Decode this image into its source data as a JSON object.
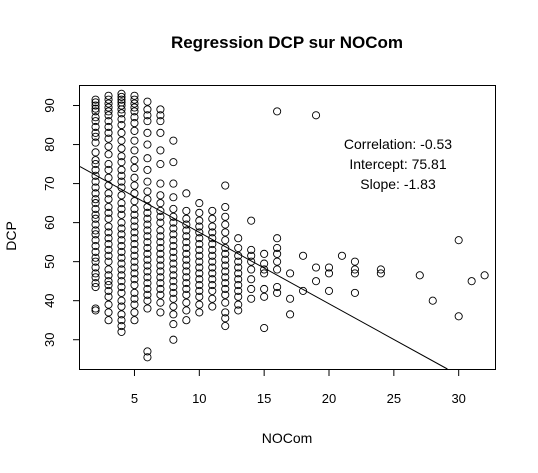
{
  "chart_data": {
    "type": "scatter",
    "title": "Regression DCP sur NOCom",
    "xlabel": "NOCom",
    "ylabel": "DCP",
    "xlim": [
      0.8,
      32.8
    ],
    "ylim": [
      22.5,
      95.0
    ],
    "xticks": [
      5,
      10,
      15,
      20,
      25,
      30
    ],
    "yticks": [
      30,
      40,
      50,
      60,
      70,
      80,
      90
    ],
    "grid": false,
    "annotations": [
      "Correlation: -0.53",
      "Intercept: 75.81",
      "Slope: -1.83"
    ],
    "regression": {
      "intercept": 75.81,
      "slope": -1.83
    },
    "columns": [
      {
        "x": 2,
        "y": [
          91.5,
          90.8,
          90.0,
          89.2,
          88.5,
          87.0,
          86.0,
          84.5,
          83.0,
          82.0,
          80.5,
          78.0,
          76.0,
          75.0,
          73.5,
          72.0,
          70.5,
          69.0,
          67.5,
          66.0,
          65.0,
          63.5,
          62.0,
          61.0,
          59.5,
          58.0,
          57.0,
          55.5,
          54.0,
          52.5,
          51.0,
          50.0,
          48.5,
          47.0,
          46.0,
          44.5,
          43.5,
          38.0,
          37.5
        ]
      },
      {
        "x": 3,
        "y": [
          92.5,
          91.5,
          90.5,
          89.5,
          88.5,
          87.5,
          86.0,
          84.5,
          83.0,
          81.5,
          79.5,
          77.5,
          75.0,
          73.5,
          71.5,
          69.5,
          67.5,
          66.0,
          64.0,
          62.5,
          61.0,
          59.0,
          57.5,
          56.0,
          54.5,
          53.0,
          51.5,
          50.0,
          48.0,
          46.5,
          45.0,
          44.0,
          42.5,
          41.0,
          39.0,
          37.0,
          35.0
        ]
      },
      {
        "x": 4,
        "y": [
          93.0,
          92.2,
          91.5,
          90.8,
          90.0,
          89.0,
          88.0,
          86.5,
          85.0,
          83.0,
          81.0,
          79.0,
          77.0,
          75.5,
          73.5,
          72.0,
          70.5,
          69.0,
          67.0,
          65.0,
          63.5,
          62.0,
          60.0,
          58.5,
          57.0,
          55.5,
          54.0,
          52.5,
          51.0,
          49.5,
          48.0,
          46.5,
          45.0,
          43.5,
          42.0,
          40.0,
          38.5,
          36.5,
          35.0,
          33.5,
          32.0
        ]
      },
      {
        "x": 5,
        "y": [
          92.5,
          91.5,
          90.5,
          89.5,
          88.5,
          87.0,
          85.5,
          83.5,
          81.0,
          78.5,
          76.0,
          74.0,
          71.5,
          69.5,
          67.5,
          65.5,
          63.5,
          62.0,
          60.5,
          59.0,
          57.5,
          56.0,
          54.5,
          53.0,
          51.5,
          50.0,
          48.5,
          47.0,
          45.5,
          44.0,
          42.0,
          40.5,
          39.0,
          37.0,
          35.0
        ]
      },
      {
        "x": 6,
        "y": [
          91.0,
          89.0,
          87.5,
          86.0,
          83.0,
          80.0,
          76.5,
          73.5,
          70.5,
          68.0,
          66.0,
          64.0,
          62.5,
          61.0,
          59.5,
          58.0,
          56.5,
          55.0,
          53.5,
          52.0,
          50.5,
          49.0,
          47.5,
          46.0,
          44.5,
          43.0,
          41.5,
          40.0,
          38.0,
          27.0,
          25.5
        ]
      },
      {
        "x": 7,
        "y": [
          89.0,
          87.5,
          86.0,
          83.0,
          78.5,
          75.0,
          70.0,
          67.0,
          65.0,
          63.0,
          61.5,
          60.0,
          58.0,
          56.5,
          55.0,
          53.5,
          52.0,
          50.5,
          49.0,
          47.5,
          46.0,
          44.5,
          43.0,
          41.5,
          39.5,
          37.0
        ]
      },
      {
        "x": 8,
        "y": [
          81.0,
          75.5,
          70.0,
          66.5,
          63.5,
          61.5,
          60.0,
          58.5,
          57.0,
          55.5,
          54.0,
          52.5,
          51.0,
          49.5,
          48.0,
          46.5,
          45.0,
          43.5,
          42.0,
          40.5,
          38.5,
          36.5,
          34.0,
          30.0
        ]
      },
      {
        "x": 9,
        "y": [
          67.5,
          63.0,
          61.0,
          59.5,
          58.0,
          56.5,
          55.0,
          53.5,
          52.0,
          50.5,
          49.0,
          47.5,
          46.0,
          44.5,
          43.0,
          41.5,
          39.5,
          37.5,
          35.0
        ]
      },
      {
        "x": 10,
        "y": [
          65.0,
          62.5,
          60.5,
          59.0,
          57.5,
          56.0,
          54.5,
          53.0,
          51.5,
          50.0,
          48.5,
          47.0,
          45.5,
          44.0,
          42.5,
          41.0,
          39.0,
          37.0
        ]
      },
      {
        "x": 11,
        "y": [
          63.0,
          61.0,
          59.0,
          57.5,
          56.0,
          54.5,
          53.0,
          51.5,
          50.0,
          48.5,
          47.0,
          45.5,
          44.0,
          42.5,
          40.5,
          38.5
        ]
      },
      {
        "x": 12,
        "y": [
          69.5,
          64.0,
          61.5,
          59.5,
          57.5,
          55.5,
          53.5,
          52.0,
          50.5,
          49.0,
          47.5,
          46.0,
          44.5,
          43.0,
          41.5,
          39.5,
          37.0,
          35.5,
          33.5
        ]
      },
      {
        "x": 13,
        "y": [
          56.0,
          53.5,
          51.5,
          50.0,
          48.5,
          47.0,
          45.5,
          44.0,
          42.5,
          41.0,
          39.0,
          37.5
        ]
      },
      {
        "x": 14,
        "y": [
          60.5,
          53.0,
          51.5,
          50.0,
          48.0,
          45.5,
          43.0,
          40.5
        ]
      },
      {
        "x": 15,
        "y": [
          52.0,
          49.5,
          48.0,
          47.0,
          43.0,
          41.0,
          33.0
        ]
      },
      {
        "x": 16,
        "y": [
          88.5,
          56.0,
          53.5,
          52.0,
          50.0,
          48.0,
          43.5,
          42.0
        ]
      },
      {
        "x": 17,
        "y": [
          47.0,
          40.5,
          36.5
        ]
      },
      {
        "x": 18,
        "y": [
          51.5,
          42.5
        ]
      },
      {
        "x": 19,
        "y": [
          87.5,
          48.5,
          45.0
        ]
      },
      {
        "x": 20,
        "y": [
          48.5,
          47.0,
          42.5
        ]
      },
      {
        "x": 21,
        "y": [
          51.5
        ]
      },
      {
        "x": 22,
        "y": [
          50.0,
          48.0,
          47.0,
          42.0
        ]
      },
      {
        "x": 24,
        "y": [
          48.0,
          47.0
        ]
      },
      {
        "x": 27,
        "y": [
          46.5
        ]
      },
      {
        "x": 28,
        "y": [
          40.0
        ]
      },
      {
        "x": 30,
        "y": [
          55.5,
          36.0
        ]
      },
      {
        "x": 31,
        "y": [
          45.0
        ]
      },
      {
        "x": 32,
        "y": [
          46.5
        ]
      }
    ]
  }
}
